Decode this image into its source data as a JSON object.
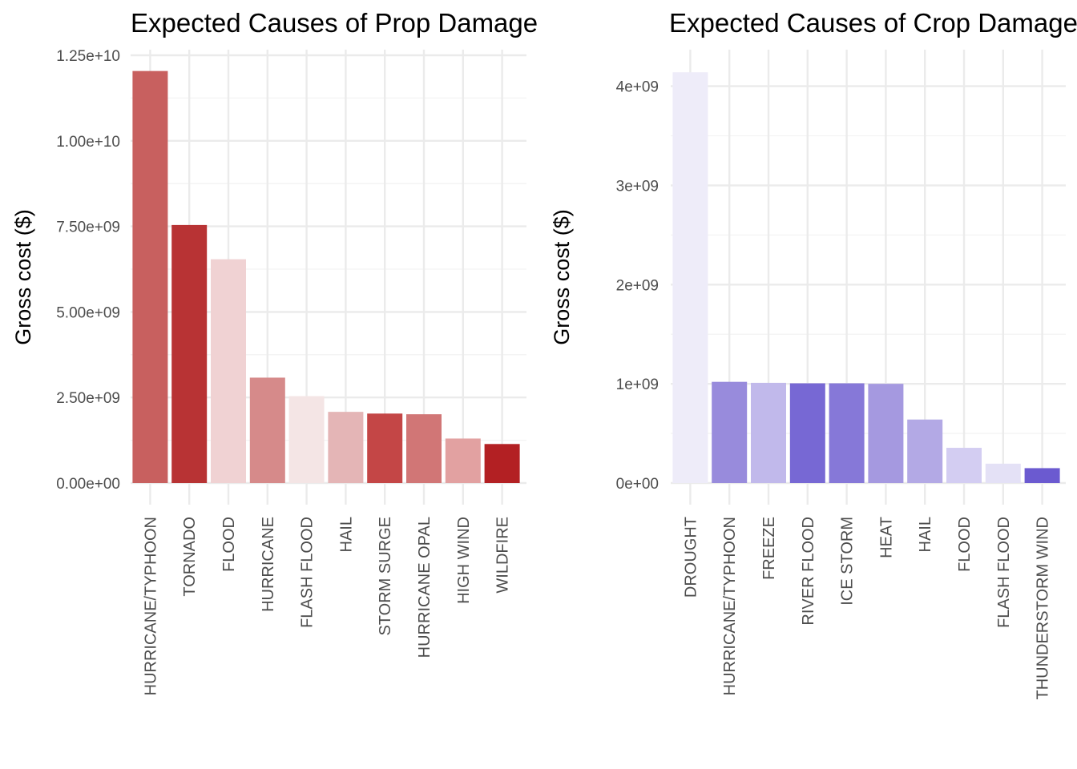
{
  "chart_data": [
    {
      "type": "bar",
      "title": "Expected Causes of Prop Damage",
      "xlabel": "",
      "ylabel": "Gross cost ($)",
      "ylim": [
        0,
        12500000000
      ],
      "yticks": [
        0,
        2500000000,
        5000000000,
        7500000000,
        10000000000,
        12500000000
      ],
      "ytick_labels": [
        "0.00e+00",
        "2.50e+09",
        "5.00e+09",
        "7.50e+09",
        "1.00e+10",
        "1.25e+10"
      ],
      "categories": [
        "HURRICANE/TYPHOON",
        "TORNADO",
        "FLOOD",
        "HURRICANE",
        "FLASH FLOOD",
        "HAIL",
        "STORM SURGE",
        "HURRICANE OPAL",
        "HIGH WIND",
        "WILDFIRE"
      ],
      "values": [
        12040000000,
        7540000000,
        6540000000,
        3080000000,
        2540000000,
        2080000000,
        2030000000,
        2010000000,
        1300000000,
        1140000000
      ],
      "bar_colors": [
        "#c8605f",
        "#b83334",
        "#f0d2d3",
        "#d68a8a",
        "#f4e5e5",
        "#e4b5b6",
        "#c44646",
        "#d17676",
        "#e2a1a1",
        "#b32023"
      ],
      "grid": true
    },
    {
      "type": "bar",
      "title": "Expected Causes of Crop Damage",
      "xlabel": "",
      "ylabel": "Gross cost ($)",
      "ylim": [
        0,
        4150000000
      ],
      "yticks": [
        0,
        1000000000,
        2000000000,
        3000000000,
        4000000000
      ],
      "ytick_labels": [
        "0e+00",
        "1e+09",
        "2e+09",
        "3e+09",
        "4e+09"
      ],
      "categories": [
        "DROUGHT",
        "HURRICANE/TYPHOON",
        "FREEZE",
        "RIVER FLOOD",
        "ICE STORM",
        "HEAT",
        "HAIL",
        "FLOOD",
        "FLASH FLOOD",
        "THUNDERSTORM WIND"
      ],
      "values": [
        4140000000,
        1020000000,
        1010000000,
        1005000000,
        1005000000,
        1000000000,
        640000000,
        355000000,
        195000000,
        150000000
      ],
      "bar_colors": [
        "#eeecf9",
        "#988bdc",
        "#c1b9eb",
        "#7768d4",
        "#8678d8",
        "#a599e0",
        "#b3a9e5",
        "#d3cdf2",
        "#e4e1f6",
        "#6b5ad0"
      ],
      "grid": true
    }
  ]
}
